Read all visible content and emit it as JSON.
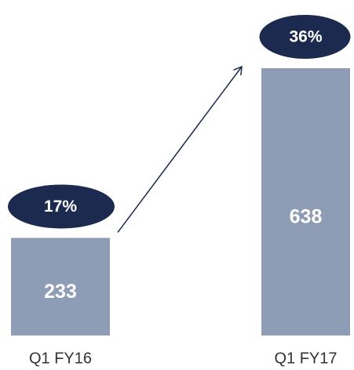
{
  "chart_data": {
    "type": "bar",
    "categories": [
      "Q1 FY16",
      "Q1 FY17"
    ],
    "values": [
      233,
      638
    ],
    "color": "#8f9cb5",
    "annotations": [
      "17%",
      "36%"
    ],
    "annotation_color": "#1c2a4f"
  }
}
